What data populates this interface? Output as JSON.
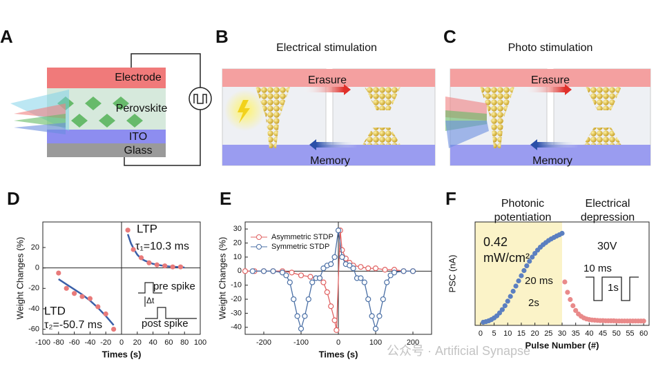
{
  "panels": [
    {
      "label": "A",
      "texts": [
        "Electrode",
        "Perovskite",
        "ITO",
        "Glass"
      ]
    },
    {
      "label": "B",
      "title": "Electrical stimulation",
      "texts": [
        "Erasure",
        "Memory"
      ]
    },
    {
      "label": "C",
      "title": "Photo stimulation",
      "texts": [
        "Erasure",
        "Memory"
      ]
    }
  ],
  "watermark": "公众号 · Artificial Synapse",
  "chart_data": [
    {
      "type": "scatter",
      "panel": "D",
      "xlabel": "Times (s)",
      "ylabel": "Weight Changes (%)",
      "xlim": [
        -100,
        100
      ],
      "ylim": [
        -65,
        45
      ],
      "xticks": [
        -100,
        -80,
        -60,
        -40,
        -20,
        0,
        20,
        40,
        60,
        80,
        100
      ],
      "yticks": [
        -60,
        -40,
        -20,
        0,
        20
      ],
      "zero_lines": true,
      "annotations": [
        "LTP",
        "τ₁=10.3 ms",
        "LTD",
        "τ₂=-50.7 ms",
        "pre spike",
        "Δt",
        "post spike"
      ],
      "series": [
        {
          "color": "#3a5fa8",
          "mode": "lines",
          "x": [
            8,
            12,
            16,
            20,
            25,
            30,
            40,
            50,
            60,
            70,
            80
          ],
          "values": [
            33,
            24,
            18,
            13,
            9,
            7,
            4,
            2.5,
            1.5,
            1,
            0.5
          ]
        },
        {
          "color": "#3a5fa8",
          "mode": "lines",
          "x": [
            -80,
            -70,
            -60,
            -50,
            -40,
            -30,
            -20,
            -10
          ],
          "values": [
            -11,
            -16,
            -21,
            -26,
            -32,
            -39,
            -47,
            -56
          ]
        },
        {
          "color": "#e87a7a",
          "mode": "markers",
          "x": [
            8,
            15,
            25,
            35,
            45,
            55,
            65,
            75
          ],
          "values": [
            37,
            18,
            10,
            5,
            3,
            2,
            1,
            1
          ]
        },
        {
          "color": "#e87a7a",
          "mode": "markers",
          "x": [
            -80,
            -70,
            -60,
            -50,
            -40,
            -30,
            -20,
            -10
          ],
          "values": [
            -5,
            -20,
            -25,
            -28,
            -30,
            -38,
            -45,
            -60
          ]
        }
      ]
    },
    {
      "type": "line",
      "panel": "E",
      "xlabel": "Times (s)",
      "ylabel": "Weight Changes (%)",
      "xlim": [
        -250,
        250
      ],
      "ylim": [
        -45,
        35
      ],
      "xticks": [
        -200,
        -100,
        0,
        100,
        200
      ],
      "yticks": [
        -40,
        -30,
        -20,
        -10,
        0,
        10,
        20,
        30
      ],
      "zero_lines": true,
      "legend": "upper left",
      "marker_fill": "open",
      "series": [
        {
          "name": "Asymmetric STDP",
          "color": "#e06060",
          "mode": "lines+markers",
          "x": [
            -250,
            -225,
            -200,
            -175,
            -150,
            -125,
            -100,
            -75,
            -50,
            -40,
            -30,
            -20,
            -10,
            -5,
            5,
            10,
            20,
            30,
            40,
            60,
            80,
            100,
            125,
            150,
            175,
            200
          ],
          "values": [
            0,
            0,
            0,
            0,
            0,
            -1,
            -3,
            -4,
            -5,
            -8,
            -15,
            -25,
            -35,
            -42,
            29,
            15,
            9,
            6,
            4,
            3,
            2,
            2,
            1,
            1,
            0,
            0
          ]
        },
        {
          "name": "Symmetric STDP",
          "color": "#4a6fa5",
          "mode": "lines+markers",
          "x": [
            -230,
            -200,
            -175,
            -150,
            -140,
            -130,
            -120,
            -110,
            -100,
            -90,
            -80,
            -70,
            -60,
            -50,
            -40,
            -30,
            -20,
            -10,
            0,
            10,
            20,
            30,
            40,
            50,
            60,
            70,
            80,
            90,
            100,
            110,
            120,
            130,
            140,
            150,
            175,
            200
          ],
          "values": [
            0,
            0,
            0,
            -1,
            -3,
            -8,
            -20,
            -32,
            -41,
            -32,
            -20,
            -8,
            -5,
            -5,
            2,
            4,
            5,
            10,
            29,
            10,
            5,
            4,
            2,
            -5,
            -5,
            -8,
            -20,
            -32,
            -41,
            -32,
            -20,
            -8,
            -3,
            -1,
            0,
            0
          ]
        }
      ]
    },
    {
      "type": "scatter",
      "panel": "F",
      "xlabel": "Pulse Number (#)",
      "ylabel": "PSC (nA)",
      "xlim": [
        -2,
        62
      ],
      "ylim": [
        0,
        5
      ],
      "xticks": [
        0,
        5,
        10,
        15,
        20,
        25,
        30,
        35,
        40,
        45,
        50,
        55,
        60
      ],
      "shade_end": 30,
      "shade_color": "#fbf3c8",
      "annotations": [
        "Photonic",
        "potentiation",
        "Electrical",
        "depression",
        "0.42",
        "mW/cm²",
        "30V",
        "20 ms",
        "2s",
        "10 ms",
        "1s"
      ],
      "series": [
        {
          "color": "#5b7fc0",
          "mode": "markers",
          "x": [
            1,
            2,
            3,
            4,
            5,
            6,
            7,
            8,
            9,
            10,
            11,
            12,
            13,
            14,
            15,
            16,
            17,
            18,
            19,
            20,
            21,
            22,
            23,
            24,
            25,
            26,
            27,
            28,
            29,
            30
          ],
          "values": [
            0.15,
            0.18,
            0.22,
            0.28,
            0.36,
            0.46,
            0.6,
            0.76,
            0.95,
            1.17,
            1.4,
            1.65,
            1.9,
            2.15,
            2.4,
            2.65,
            2.88,
            3.1,
            3.3,
            3.48,
            3.64,
            3.78,
            3.9,
            4.0,
            4.1,
            4.18,
            4.25,
            4.32,
            4.38,
            4.45
          ]
        },
        {
          "color": "#e98a8a",
          "mode": "markers",
          "x": [
            31,
            32,
            33,
            34,
            35,
            36,
            37,
            38,
            39,
            40,
            41,
            42,
            43,
            44,
            45,
            46,
            47,
            48,
            49,
            50,
            51,
            52,
            53,
            54,
            55,
            56,
            57,
            58,
            59,
            60
          ],
          "values": [
            2.1,
            1.6,
            1.25,
            0.95,
            0.72,
            0.55,
            0.44,
            0.36,
            0.31,
            0.28,
            0.26,
            0.25,
            0.24,
            0.23,
            0.23,
            0.22,
            0.22,
            0.22,
            0.22,
            0.21,
            0.21,
            0.21,
            0.21,
            0.21,
            0.21,
            0.21,
            0.21,
            0.21,
            0.21,
            0.21
          ]
        }
      ]
    }
  ]
}
